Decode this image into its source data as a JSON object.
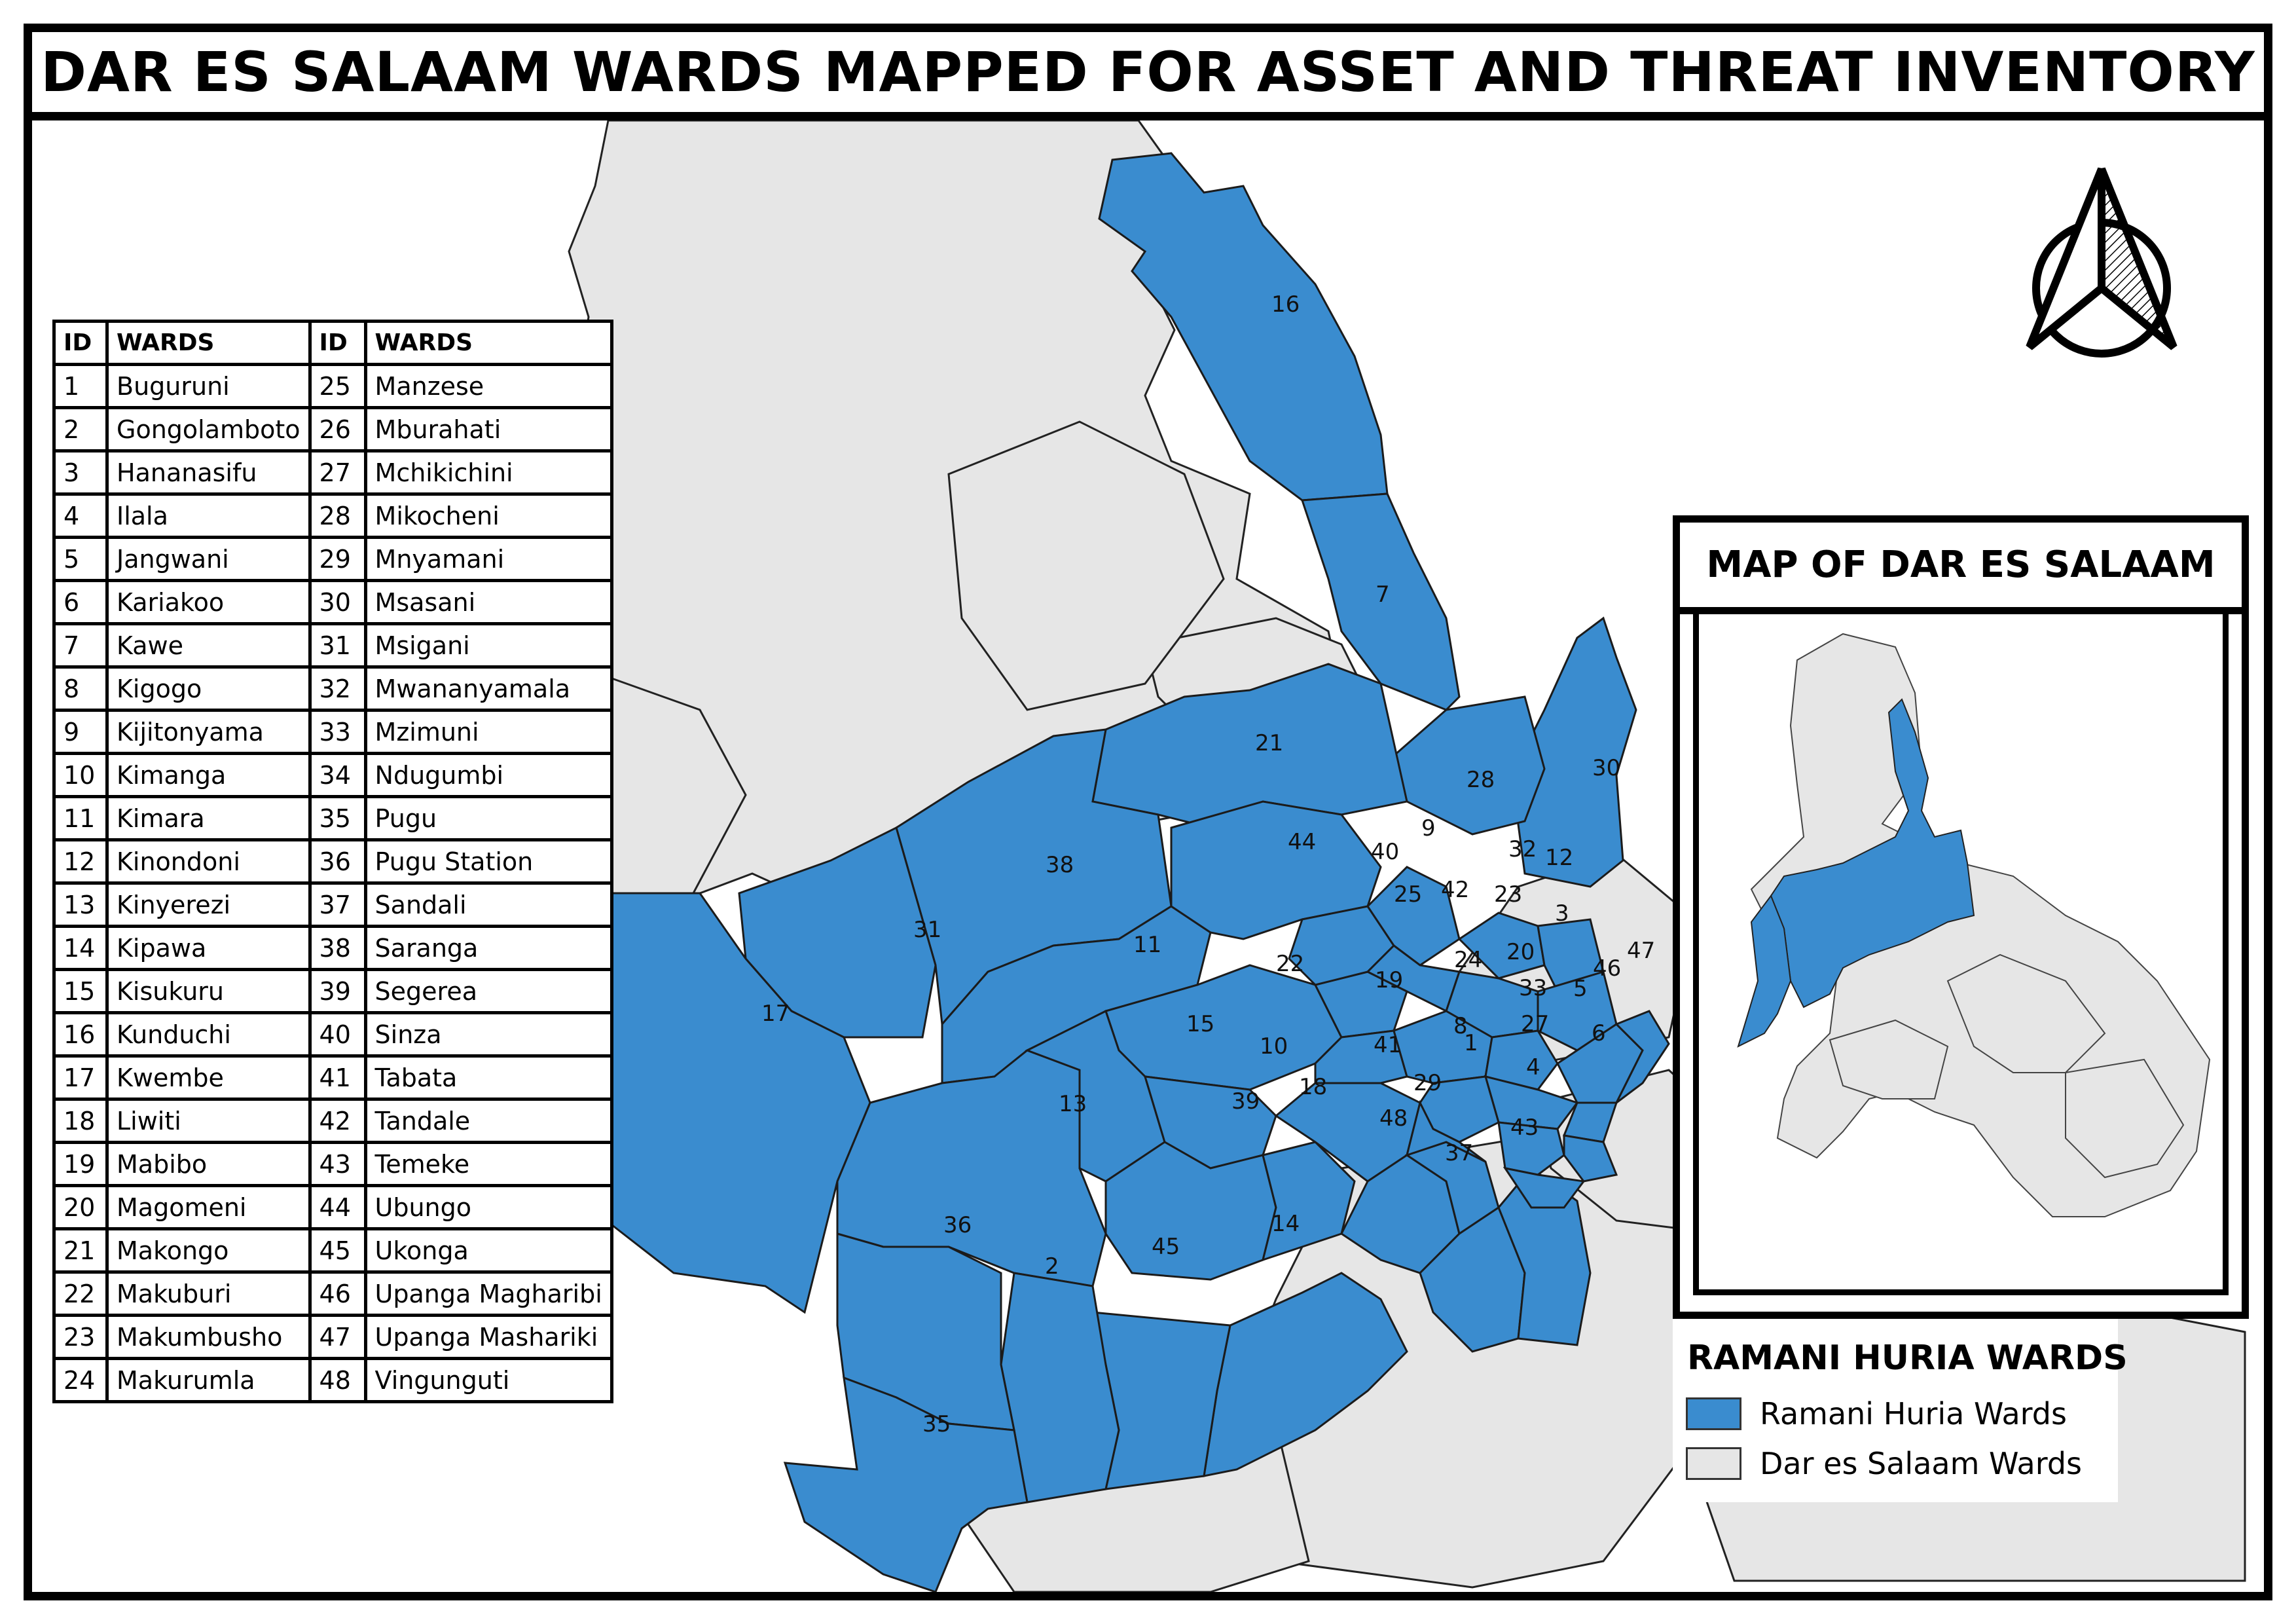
{
  "title": "DAR ES SALAAM WARDS MAPPED FOR ASSET AND THREAT INVENTORY",
  "colors": {
    "ramani": "#3a8ccf",
    "other": "#e6e6e6",
    "border": "#222222",
    "frame": "#000000"
  },
  "table": {
    "headers": {
      "id": "ID",
      "wards": "WARDS"
    },
    "left": [
      {
        "id": "1",
        "name": "Buguruni"
      },
      {
        "id": "2",
        "name": "Gongolamboto"
      },
      {
        "id": "3",
        "name": "Hananasifu"
      },
      {
        "id": "4",
        "name": "Ilala"
      },
      {
        "id": "5",
        "name": "Jangwani"
      },
      {
        "id": "6",
        "name": "Kariakoo"
      },
      {
        "id": "7",
        "name": "Kawe"
      },
      {
        "id": "8",
        "name": "Kigogo"
      },
      {
        "id": "9",
        "name": "Kijitonyama"
      },
      {
        "id": "10",
        "name": "Kimanga"
      },
      {
        "id": "11",
        "name": "Kimara"
      },
      {
        "id": "12",
        "name": "Kinondoni"
      },
      {
        "id": "13",
        "name": "Kinyerezi"
      },
      {
        "id": "14",
        "name": "Kipawa"
      },
      {
        "id": "15",
        "name": "Kisukuru"
      },
      {
        "id": "16",
        "name": "Kunduchi"
      },
      {
        "id": "17",
        "name": "Kwembe"
      },
      {
        "id": "18",
        "name": "Liwiti"
      },
      {
        "id": "19",
        "name": "Mabibo"
      },
      {
        "id": "20",
        "name": "Magomeni"
      },
      {
        "id": "21",
        "name": "Makongo"
      },
      {
        "id": "22",
        "name": "Makuburi"
      },
      {
        "id": "23",
        "name": "Makumbusho"
      },
      {
        "id": "24",
        "name": "Makurumla"
      }
    ],
    "right": [
      {
        "id": "25",
        "name": "Manzese"
      },
      {
        "id": "26",
        "name": "Mburahati"
      },
      {
        "id": "27",
        "name": "Mchikichini"
      },
      {
        "id": "28",
        "name": "Mikocheni"
      },
      {
        "id": "29",
        "name": "Mnyamani"
      },
      {
        "id": "30",
        "name": "Msasani"
      },
      {
        "id": "31",
        "name": "Msigani"
      },
      {
        "id": "32",
        "name": "Mwananyamala"
      },
      {
        "id": "33",
        "name": "Mzimuni"
      },
      {
        "id": "34",
        "name": "Ndugumbi"
      },
      {
        "id": "35",
        "name": "Pugu"
      },
      {
        "id": "36",
        "name": "Pugu Station"
      },
      {
        "id": "37",
        "name": "Sandali"
      },
      {
        "id": "38",
        "name": "Saranga"
      },
      {
        "id": "39",
        "name": "Segerea"
      },
      {
        "id": "40",
        "name": "Sinza"
      },
      {
        "id": "41",
        "name": "Tabata"
      },
      {
        "id": "42",
        "name": "Tandale"
      },
      {
        "id": "43",
        "name": "Temeke"
      },
      {
        "id": "44",
        "name": "Ubungo"
      },
      {
        "id": "45",
        "name": "Ukonga"
      },
      {
        "id": "46",
        "name": "Upanga Magharibi"
      },
      {
        "id": "47",
        "name": "Upanga Mashariki"
      },
      {
        "id": "48",
        "name": "Vingunguti"
      }
    ]
  },
  "inset": {
    "title": "MAP OF DAR ES SALAAM"
  },
  "legend": {
    "title": "RAMANI HURIA WARDS",
    "items": [
      {
        "label": "Ramani Huria Wards",
        "color": "#3a8ccf"
      },
      {
        "label": "Dar es Salaam Wards",
        "color": "#e6e6e6"
      }
    ]
  },
  "ward_labels": [
    "1",
    "2",
    "3",
    "4",
    "5",
    "6",
    "7",
    "8",
    "9",
    "10",
    "11",
    "12",
    "13",
    "14",
    "15",
    "16",
    "17",
    "18",
    "19",
    "20",
    "21",
    "22",
    "23",
    "24",
    "25",
    "27",
    "28",
    "29",
    "30",
    "31",
    "32",
    "33",
    "35",
    "36",
    "37",
    "38",
    "39",
    "40",
    "41",
    "42",
    "43",
    "44",
    "45",
    "46",
    "47",
    "48"
  ],
  "north_arrow": {
    "icon": "north-arrow-icon"
  }
}
